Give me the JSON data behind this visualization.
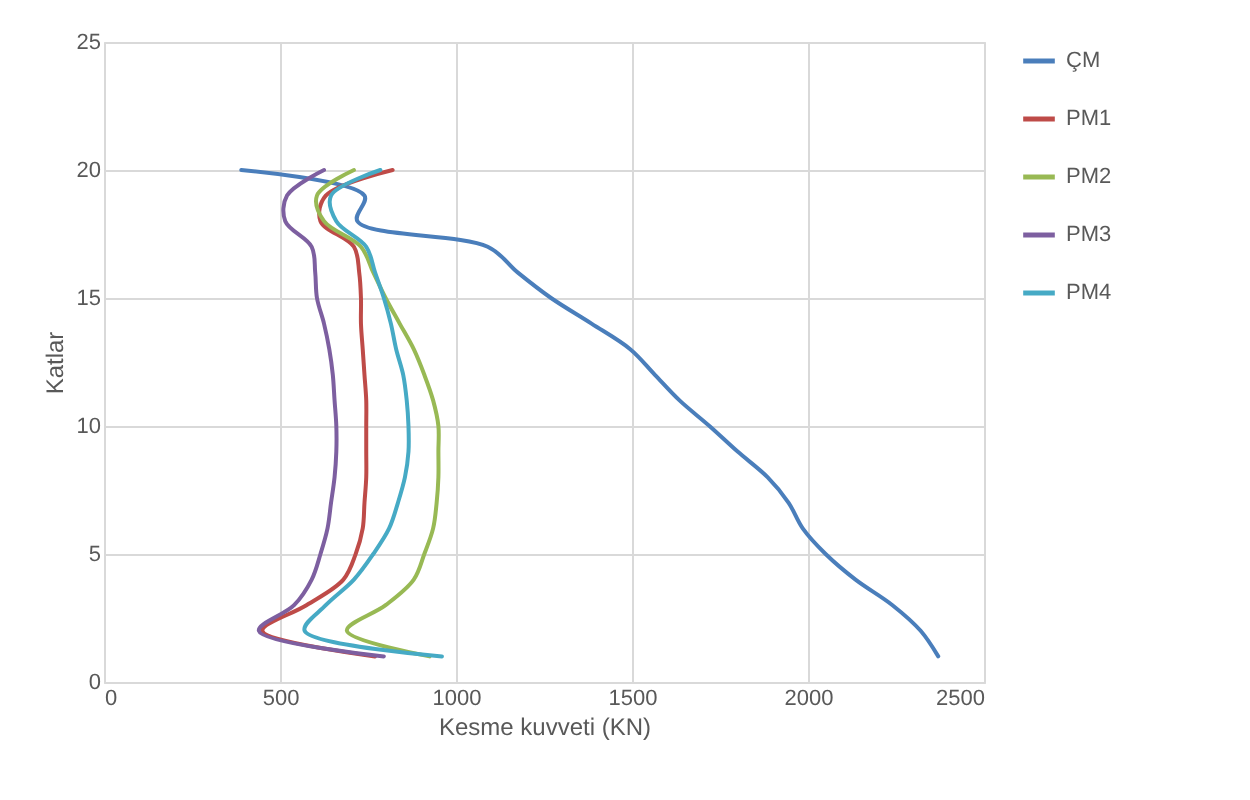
{
  "chart_data": {
    "type": "line",
    "xlabel": "Kesme kuvveti (KN)",
    "ylabel": "Katlar",
    "xlim": [
      0,
      2500
    ],
    "xticks": [
      0,
      500,
      1000,
      1500,
      2000,
      2500
    ],
    "ylim": [
      0,
      25
    ],
    "yticks": [
      0,
      5,
      10,
      15,
      20,
      25
    ],
    "grid": true,
    "legend": "right",
    "marker": "none",
    "line_style": "solid",
    "series": [
      {
        "name": "ÇM",
        "color": "#4a7ebb",
        "x": [
          2370,
          2320,
          2240,
          2135,
          2050,
          1985,
          1945,
          1885,
          1800,
          1720,
          1635,
          1565,
          1495,
          1385,
          1270,
          1175,
          1090,
          720,
          740,
          390
        ],
        "values": [
          1,
          2,
          3,
          4,
          5,
          6,
          7,
          8,
          9,
          10,
          11,
          12,
          13,
          14,
          15,
          16,
          17,
          18,
          19,
          20
        ]
      },
      {
        "name": "PM1",
        "color": "#be4b48",
        "x": [
          770,
          450,
          575,
          680,
          715,
          735,
          740,
          745,
          745,
          745,
          745,
          740,
          735,
          730,
          730,
          725,
          710,
          615,
          630,
          820
        ],
        "values": [
          1,
          2,
          3,
          4,
          5,
          6,
          7,
          8,
          9,
          10,
          11,
          12,
          13,
          14,
          15,
          16,
          17,
          18,
          19,
          20
        ]
      },
      {
        "name": "PM2",
        "color": "#98b954",
        "x": [
          925,
          690,
          800,
          880,
          910,
          935,
          945,
          950,
          950,
          950,
          935,
          910,
          880,
          840,
          800,
          765,
          730,
          625,
          605,
          710
        ],
        "values": [
          1,
          2,
          3,
          4,
          5,
          6,
          7,
          8,
          9,
          10,
          11,
          12,
          13,
          14,
          15,
          16,
          17,
          18,
          19,
          20
        ]
      },
      {
        "name": "PM3",
        "color": "#7d5fa0",
        "x": [
          795,
          440,
          540,
          590,
          615,
          635,
          645,
          655,
          660,
          660,
          655,
          650,
          640,
          625,
          605,
          600,
          590,
          515,
          520,
          625
        ],
        "values": [
          1,
          2,
          3,
          4,
          5,
          6,
          7,
          8,
          9,
          10,
          11,
          12,
          13,
          14,
          15,
          16,
          17,
          18,
          19,
          20
        ]
      },
      {
        "name": "PM4",
        "color": "#46aac5",
        "x": [
          960,
          570,
          630,
          710,
          765,
          810,
          835,
          855,
          865,
          865,
          860,
          850,
          830,
          815,
          795,
          770,
          745,
          660,
          645,
          785
        ],
        "values": [
          1,
          2,
          3,
          4,
          5,
          6,
          7,
          8,
          9,
          10,
          11,
          12,
          13,
          14,
          15,
          16,
          17,
          18,
          19,
          20
        ]
      }
    ]
  }
}
